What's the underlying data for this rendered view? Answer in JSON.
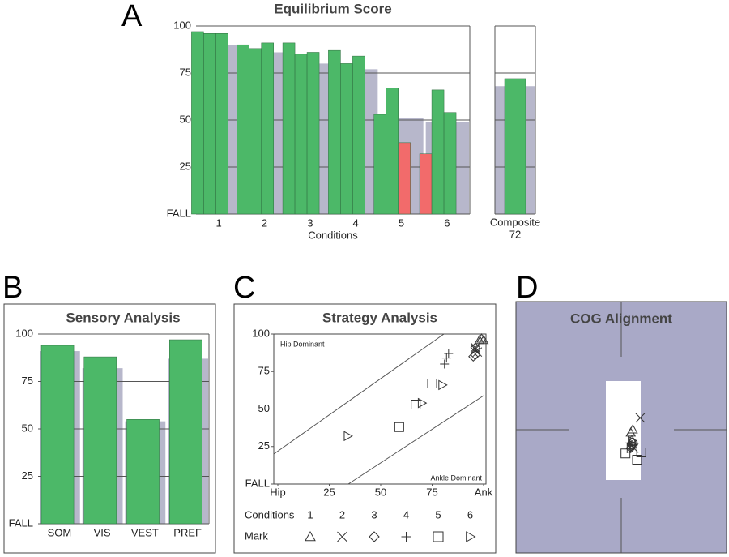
{
  "chart_data": [
    {
      "type": "bar",
      "label": "A",
      "title": "Equilibrium Score",
      "xlabel": "Conditions",
      "categories": [
        "1",
        "2",
        "3",
        "4",
        "5",
        "6"
      ],
      "values": [
        [
          97,
          96,
          96
        ],
        [
          90,
          88,
          91
        ],
        [
          91,
          85,
          86
        ],
        [
          87,
          80,
          84
        ],
        [
          53,
          67,
          38
        ],
        [
          32,
          66,
          54
        ]
      ],
      "colors": [
        [
          "#4cb868",
          "#4cb868",
          "#4cb868"
        ],
        [
          "#4cb868",
          "#4cb868",
          "#4cb868"
        ],
        [
          "#4cb868",
          "#4cb868",
          "#4cb868"
        ],
        [
          "#4cb868",
          "#4cb868",
          "#4cb868"
        ],
        [
          "#4cb868",
          "#4cb868",
          "#f26b6b"
        ],
        [
          "#f26b6b",
          "#4cb868",
          "#4cb868"
        ]
      ],
      "norms": [
        90,
        86,
        80,
        77,
        51,
        49
      ],
      "norm_color": "#b7b7cb",
      "composite": {
        "label": "Composite",
        "value": 72,
        "norm": 68,
        "color": "#4cb868"
      },
      "ylim": [
        0,
        100
      ],
      "yticks": [
        {
          "value": 0,
          "label": "FALL"
        },
        25,
        50,
        75,
        100
      ],
      "grid": true
    },
    {
      "type": "bar",
      "label": "B",
      "title": "Sensory Analysis",
      "categories": [
        "SOM",
        "VIS",
        "VEST",
        "PREF"
      ],
      "values": [
        94,
        88,
        55,
        97
      ],
      "color": "#4cb868",
      "norms": [
        91,
        82,
        54,
        87
      ],
      "norm_color": "#b7b7cb",
      "ylim": [
        0,
        100
      ],
      "yticks": [
        {
          "value": 0,
          "label": "FALL"
        },
        25,
        50,
        75,
        100
      ],
      "grid": true
    },
    {
      "type": "scatter",
      "label": "C",
      "title": "Strategy Analysis",
      "annotations": [
        "Hip Dominant",
        "Ankle Dominant"
      ],
      "legend_labels": [
        "Conditions",
        "Mark"
      ],
      "marker_color": "#333",
      "xlim": [
        0,
        100
      ],
      "xticks": [
        {
          "value": 0,
          "label": "Hip"
        },
        25,
        50,
        75,
        {
          "value": 100,
          "label": "Ank"
        }
      ],
      "ylim": [
        0,
        100
      ],
      "yticks": [
        {
          "value": 0,
          "label": "FALL"
        },
        25,
        50,
        75,
        100
      ],
      "series": [
        {
          "name": "1",
          "marker": "triangle",
          "x": [
            99,
            100,
            98
          ],
          "y": [
            97,
            96,
            96
          ]
        },
        {
          "name": "2",
          "marker": "x",
          "x": [
            96,
            97,
            96
          ],
          "y": [
            90,
            88,
            91
          ]
        },
        {
          "name": "3",
          "marker": "diamond",
          "x": [
            96,
            95,
            96
          ],
          "y": [
            91,
            85,
            86
          ]
        },
        {
          "name": "4",
          "marker": "plus",
          "x": [
            83,
            81,
            82
          ],
          "y": [
            87,
            80,
            84
          ]
        },
        {
          "name": "5",
          "marker": "square",
          "x": [
            67,
            75,
            59
          ],
          "y": [
            53,
            67,
            38
          ]
        },
        {
          "name": "6",
          "marker": "right",
          "x": [
            34,
            80,
            70
          ],
          "y": [
            32,
            66,
            54
          ]
        }
      ]
    },
    {
      "type": "scatter",
      "label": "D",
      "title": "COG Alignment",
      "marker_color": "#333",
      "xlim": [
        -10,
        10
      ],
      "ylim": [
        -12,
        12
      ],
      "series": [
        {
          "marker": "triangle",
          "x": [
            0.9,
            1.1,
            1.0
          ],
          "y": [
            -0.5,
            -0.2,
            -1.2
          ]
        },
        {
          "marker": "x",
          "x": [
            1.8,
            1.1,
            1.2
          ],
          "y": [
            0.9,
            -1.6,
            -2.0
          ]
        },
        {
          "marker": "diamond",
          "x": [
            1.0,
            0.9,
            1.1
          ],
          "y": [
            -1.7,
            -2.0,
            -1.4
          ]
        },
        {
          "marker": "plus",
          "x": [
            0.9,
            1.1,
            0.8
          ],
          "y": [
            -2.0,
            -1.7,
            -1.5
          ]
        },
        {
          "marker": "square",
          "x": [
            0.4,
            1.5,
            1.9
          ],
          "y": [
            -2.5,
            -3.1,
            -2.4
          ]
        },
        {
          "marker": "right",
          "x": [
            1.0,
            0.9,
            1.1
          ],
          "y": [
            -1.3,
            -2.0,
            -1.7
          ]
        }
      ]
    }
  ]
}
